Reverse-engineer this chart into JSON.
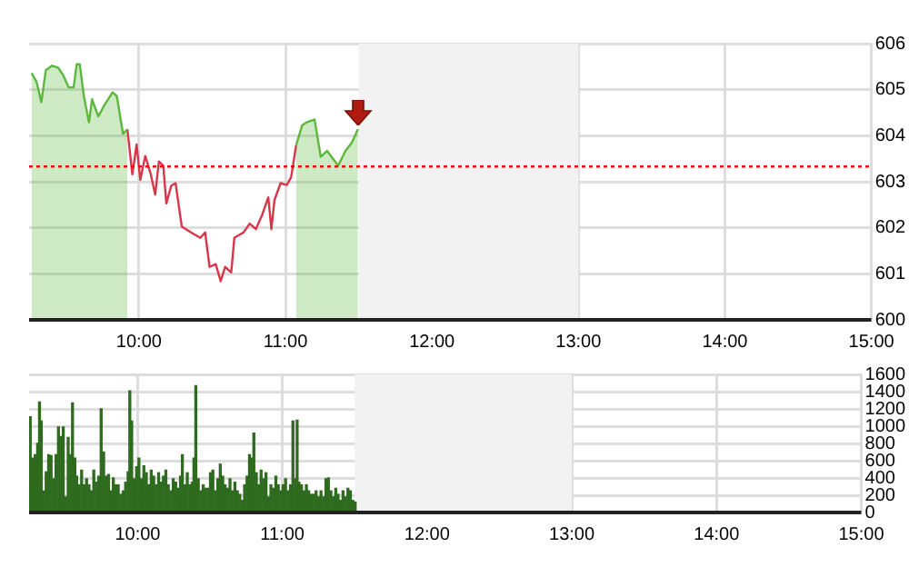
{
  "chart_data": [
    {
      "type": "area",
      "x": [
        9.267,
        9.301,
        9.334,
        9.364,
        9.406,
        9.448,
        9.482,
        9.52,
        9.554,
        9.575,
        9.596,
        9.626,
        9.659,
        9.68,
        9.723,
        9.765,
        9.82,
        9.849,
        9.891,
        9.921,
        9.955,
        9.984,
        10.009,
        10.043,
        10.081,
        10.111,
        10.136,
        10.166,
        10.187,
        10.22,
        10.25,
        10.292,
        10.355,
        10.419,
        10.452,
        10.482,
        10.524,
        10.558,
        10.588,
        10.63,
        10.651,
        10.714,
        10.756,
        10.798,
        10.841,
        10.883,
        10.904,
        10.925,
        10.967,
        11.009,
        11.039,
        11.073,
        11.115,
        11.144,
        11.199,
        11.241,
        11.284,
        11.36,
        11.41,
        11.453,
        11.495
      ],
      "series": [
        {
          "color": "#5cb83c",
          "values": [
            605.36,
            605.17,
            604.73,
            605.42,
            605.52,
            605.48,
            605.32,
            605.05,
            605.05,
            605.55,
            605.55,
            604.82,
            604.29,
            604.79,
            604.42,
            604.67,
            604.94,
            604.86,
            604.04,
            604.14,
            null,
            null,
            null,
            null,
            null,
            null,
            null,
            null,
            null,
            null,
            null,
            null,
            null,
            null,
            null,
            null,
            null,
            null,
            null,
            null,
            null,
            null,
            null,
            null,
            null,
            null,
            null,
            null,
            null,
            null,
            null,
            603.79,
            604.23,
            604.29,
            604.35,
            603.54,
            603.67,
            603.35,
            603.67,
            603.85,
            604.14
          ]
        },
        {
          "type": "line",
          "color": "#d9364a",
          "values": [
            null,
            null,
            null,
            null,
            null,
            null,
            null,
            null,
            null,
            null,
            null,
            null,
            null,
            null,
            null,
            null,
            null,
            null,
            null,
            604.14,
            603.16,
            603.81,
            603.04,
            603.56,
            603.16,
            602.72,
            603.44,
            603.35,
            602.53,
            602.91,
            602.97,
            602.03,
            601.9,
            601.78,
            601.9,
            601.15,
            601.21,
            600.84,
            601.15,
            601.03,
            601.78,
            601.9,
            602.09,
            601.97,
            602.28,
            602.66,
            601.97,
            602.6,
            602.97,
            602.93,
            603.1,
            603.79,
            null,
            null,
            null,
            null,
            null,
            null,
            null,
            null,
            null
          ]
        }
      ],
      "xlim": [
        9.25,
        15
      ],
      "xticks": [
        {
          "value": 10,
          "label": "10:00"
        },
        {
          "value": 11,
          "label": "11:00"
        },
        {
          "value": 12,
          "label": "12:00"
        },
        {
          "value": 13,
          "label": "13:00"
        },
        {
          "value": 14,
          "label": "14:00"
        },
        {
          "value": 15,
          "label": "15:00"
        }
      ],
      "ylim": [
        600,
        606
      ],
      "yticks": [
        600,
        601,
        602,
        603,
        604,
        605,
        606
      ],
      "grid": true,
      "ref_lines": [
        {
          "axis": "y",
          "value": 603.33,
          "color": "#ff0000",
          "line_style": "dotted"
        }
      ],
      "bands": [
        {
          "axis": "x",
          "from": 11.5,
          "to": 13,
          "color": "#f2f2f2"
        }
      ]
    },
    {
      "type": "bar",
      "x": [
        9.258,
        9.271,
        9.292,
        9.309,
        9.322,
        9.334,
        9.351,
        9.368,
        9.385,
        9.402,
        9.419,
        9.436,
        9.453,
        9.469,
        9.486,
        9.503,
        9.52,
        9.537,
        9.55,
        9.566,
        9.579,
        9.596,
        9.613,
        9.63,
        9.647,
        9.664,
        9.68,
        9.697,
        9.714,
        9.731,
        9.748,
        9.765,
        9.782,
        9.799,
        9.815,
        9.832,
        9.849,
        9.866,
        9.883,
        9.9,
        9.917,
        9.934,
        9.946,
        9.959,
        9.976,
        9.993,
        10.009,
        10.026,
        10.043,
        10.06,
        10.077,
        10.094,
        10.111,
        10.128,
        10.145,
        10.161,
        10.178,
        10.195,
        10.212,
        10.229,
        10.246,
        10.263,
        10.28,
        10.296,
        10.309,
        10.326,
        10.343,
        10.36,
        10.377,
        10.389,
        10.402,
        10.419,
        10.436,
        10.453,
        10.469,
        10.486,
        10.503,
        10.52,
        10.537,
        10.554,
        10.571,
        10.588,
        10.604,
        10.621,
        10.638,
        10.655,
        10.672,
        10.689,
        10.706,
        10.723,
        10.739,
        10.756,
        10.773,
        10.786,
        10.803,
        10.82,
        10.836,
        10.853,
        10.87,
        10.887,
        10.904,
        10.921,
        10.938,
        10.955,
        10.972,
        10.989,
        11.005,
        11.022,
        11.039,
        11.056,
        11.073,
        11.09,
        11.102,
        11.115,
        11.132,
        11.149,
        11.166,
        11.182,
        11.199,
        11.216,
        11.233,
        11.25,
        11.267,
        11.284,
        11.301,
        11.318,
        11.335,
        11.352,
        11.369,
        11.385,
        11.402,
        11.419,
        11.436,
        11.453,
        11.47,
        11.487,
        11.503
      ],
      "series": [
        {
          "color": "#2e6b1f",
          "values": [
            1110,
            630,
            670,
            800,
            1280,
            1060,
            250,
            470,
            670,
            660,
            390,
            670,
            990,
            880,
            990,
            180,
            870,
            670,
            1270,
            630,
            420,
            320,
            490,
            320,
            390,
            320,
            250,
            490,
            350,
            420,
            1200,
            700,
            420,
            440,
            250,
            400,
            320,
            320,
            210,
            250,
            350,
            470,
            1410,
            1060,
            390,
            530,
            630,
            390,
            540,
            460,
            320,
            490,
            420,
            320,
            460,
            350,
            420,
            490,
            320,
            250,
            390,
            350,
            280,
            420,
            670,
            320,
            460,
            320,
            350,
            630,
            1470,
            390,
            250,
            320,
            280,
            280,
            460,
            490,
            250,
            390,
            560,
            420,
            320,
            280,
            390,
            250,
            350,
            250,
            210,
            140,
            320,
            420,
            670,
            630,
            920,
            460,
            320,
            490,
            390,
            460,
            180,
            320,
            280,
            420,
            320,
            250,
            320,
            390,
            250,
            320,
            1060,
            390,
            1070,
            350,
            320,
            250,
            320,
            250,
            210,
            210,
            250,
            180,
            250,
            180,
            390,
            400,
            250,
            180,
            280,
            210,
            140,
            250,
            180,
            280,
            250,
            140,
            120
          ]
        }
      ],
      "xlim": [
        9.25,
        15
      ],
      "xticks": [
        {
          "value": 10,
          "label": "10:00"
        },
        {
          "value": 11,
          "label": "11:00"
        },
        {
          "value": 12,
          "label": "12:00"
        },
        {
          "value": 13,
          "label": "13:00"
        },
        {
          "value": 14,
          "label": "14:00"
        },
        {
          "value": 15,
          "label": "15:00"
        }
      ],
      "ylim": [
        0,
        1600
      ],
      "yticks": [
        0,
        200,
        400,
        600,
        800,
        1000,
        1200,
        1400,
        1600
      ],
      "grid": true,
      "bands": [
        {
          "axis": "x",
          "from": 11.5,
          "to": 13,
          "color": "#f2f2f2"
        }
      ]
    }
  ]
}
